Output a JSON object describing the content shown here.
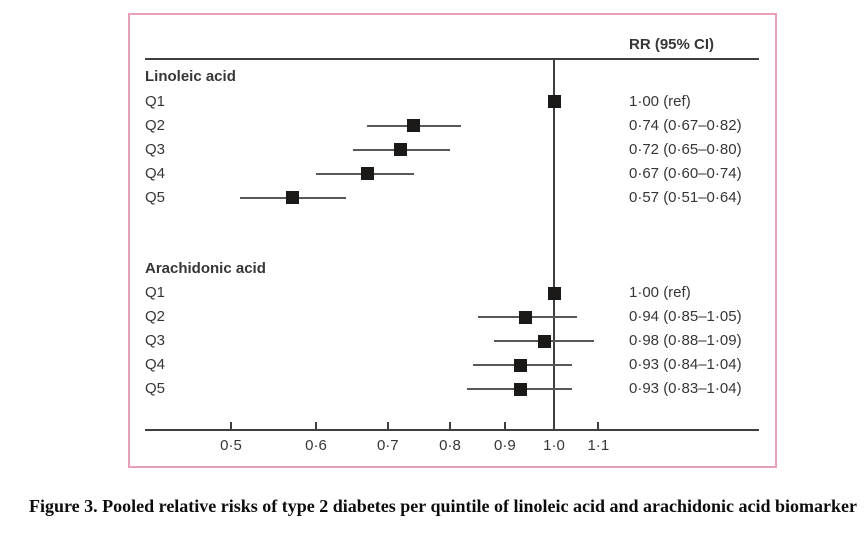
{
  "figure": {
    "caption": "Figure 3. Pooled relative risks of type 2 diabetes per quintile of linoleic acid and arachidonic acid biomarker"
  },
  "chart_data": {
    "type": "forest",
    "x_scale": "log",
    "column_header": "RR (95% CI)",
    "ref_line_value": 1.0,
    "x_range": [
      0.45,
      1.18
    ],
    "xticks": [
      0.5,
      0.6,
      0.7,
      0.8,
      0.9,
      1.0,
      1.1
    ],
    "xtick_labels": [
      "0·5",
      "0·6",
      "0·7",
      "0·8",
      "0·9",
      "1·0",
      "1·1"
    ],
    "groups": [
      {
        "label": "Linoleic acid",
        "rows": [
          {
            "label": "Q1",
            "rr": 1.0,
            "ci_low": null,
            "ci_high": null,
            "text": "1·00 (ref)"
          },
          {
            "label": "Q2",
            "rr": 0.74,
            "ci_low": 0.67,
            "ci_high": 0.82,
            "text": "0·74 (0·67–0·82)"
          },
          {
            "label": "Q3",
            "rr": 0.72,
            "ci_low": 0.65,
            "ci_high": 0.8,
            "text": "0·72 (0·65–0·80)"
          },
          {
            "label": "Q4",
            "rr": 0.67,
            "ci_low": 0.6,
            "ci_high": 0.74,
            "text": "0·67 (0·60–0·74)"
          },
          {
            "label": "Q5",
            "rr": 0.57,
            "ci_low": 0.51,
            "ci_high": 0.64,
            "text": "0·57 (0·51–0·64)"
          }
        ]
      },
      {
        "label": "Arachidonic acid",
        "rows": [
          {
            "label": "Q1",
            "rr": 1.0,
            "ci_low": null,
            "ci_high": null,
            "text": "1·00 (ref)"
          },
          {
            "label": "Q2",
            "rr": 0.94,
            "ci_low": 0.85,
            "ci_high": 1.05,
            "text": "0·94 (0·85–1·05)"
          },
          {
            "label": "Q3",
            "rr": 0.98,
            "ci_low": 0.88,
            "ci_high": 1.09,
            "text": "0·98 (0·88–1·09)"
          },
          {
            "label": "Q4",
            "rr": 0.93,
            "ci_low": 0.84,
            "ci_high": 1.04,
            "text": "0·93 (0·84–1·04)"
          },
          {
            "label": "Q5",
            "rr": 0.93,
            "ci_low": 0.83,
            "ci_high": 1.04,
            "text": "0·93 (0·83–1·04)"
          }
        ]
      }
    ],
    "colors": {
      "accent_border": "#e8a0b4",
      "marker": "#1b1918",
      "axis_line": "#3f3f41",
      "ci_line": "#58585a",
      "text": "#363636"
    }
  }
}
